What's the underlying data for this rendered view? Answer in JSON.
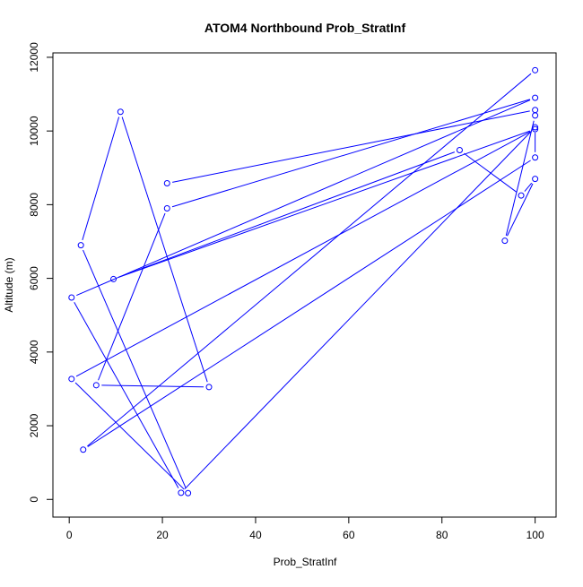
{
  "colors": {
    "series": "#0000ff",
    "axis": "#000000",
    "background": "#ffffff"
  },
  "chart_data": {
    "type": "line",
    "title": "ATOM4 Northbound Prob_StratInf",
    "xlabel": "Prob_StratInf",
    "ylabel": "Altitude (m)",
    "xlim": [
      -3.5,
      104.5
    ],
    "ylim": [
      -480,
      12120
    ],
    "x_ticks": [
      0,
      20,
      40,
      60,
      80,
      100
    ],
    "y_ticks": [
      0,
      2000,
      4000,
      6000,
      8000,
      10000,
      12000
    ],
    "grid": false,
    "legend": "none",
    "markers": "open-circle",
    "series": [
      {
        "points": [
          [
            100,
            11650
          ],
          [
            3,
            1350
          ],
          [
            100,
            9280
          ],
          [
            100,
            10100
          ],
          [
            24,
            180
          ],
          [
            0.5,
            5480
          ],
          [
            100,
            10900
          ],
          [
            21,
            7900
          ],
          [
            5.8,
            3100
          ],
          [
            30,
            3050
          ],
          [
            11,
            10520
          ],
          [
            2.5,
            6900
          ],
          [
            25.5,
            170
          ],
          [
            0.5,
            3270
          ],
          [
            100,
            10050
          ],
          [
            9.5,
            5980
          ],
          [
            83.8,
            9480
          ],
          [
            97,
            8250
          ],
          [
            100,
            8700
          ],
          [
            93.5,
            7020
          ],
          [
            100,
            10420
          ],
          [
            100,
            10570
          ],
          [
            21,
            8580
          ]
        ]
      }
    ]
  }
}
